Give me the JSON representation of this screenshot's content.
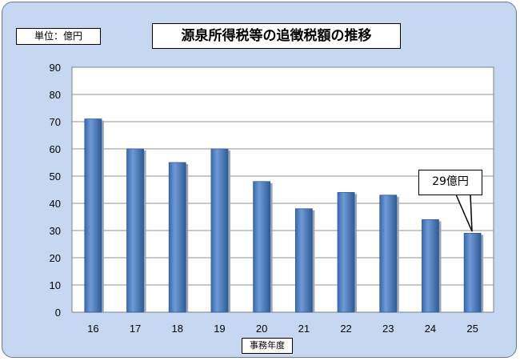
{
  "unit_label": "単位：億円",
  "title": "源泉所得税等の追徴税額の推移",
  "xlabel": "事務年度",
  "callout": "29億円",
  "colors": {
    "bar": "#4a7ec4",
    "bar_dark": "#2f5b96",
    "background": "#c6d8f1",
    "plot": "#ffffff"
  },
  "chart_data": {
    "type": "bar",
    "title": "源泉所得税等の追徴税額の推移",
    "xlabel": "事務年度",
    "ylabel": "単位：億円",
    "categories": [
      "16",
      "17",
      "18",
      "19",
      "20",
      "21",
      "22",
      "23",
      "24",
      "25"
    ],
    "values": [
      71,
      60,
      55,
      60,
      48,
      38,
      44,
      43,
      34,
      29
    ],
    "ylim": [
      0,
      90
    ],
    "yticks": [
      0,
      10,
      20,
      30,
      40,
      50,
      60,
      70,
      80,
      90
    ],
    "grid": true,
    "annotation": {
      "category": "25",
      "text": "29億円"
    }
  }
}
